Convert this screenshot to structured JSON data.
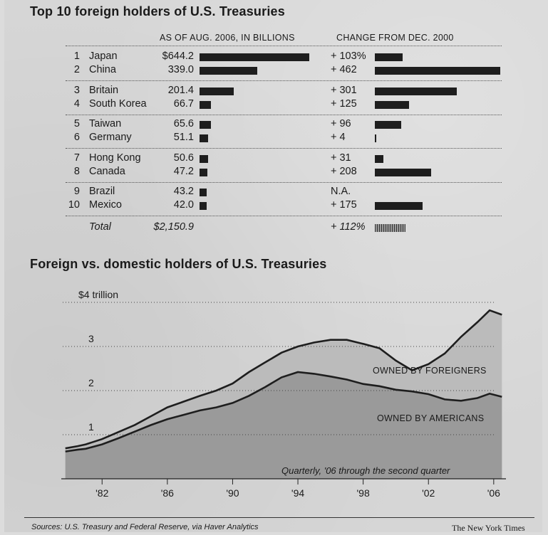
{
  "table": {
    "title": "Top 10 foreign holders of U.S. Treasuries",
    "col_amount": "AS OF AUG. 2006, IN BILLIONS",
    "col_change": "CHANGE FROM DEC. 2000",
    "rows": [
      {
        "rank": "1",
        "country": "Japan",
        "amount_label": "$644.2",
        "amount": 644.2,
        "change_label": "+ 103%",
        "change": 103
      },
      {
        "rank": "2",
        "country": "China",
        "amount_label": "339.0",
        "amount": 339.0,
        "change_label": "+ 462",
        "change": 462
      },
      {
        "rank": "3",
        "country": "Britain",
        "amount_label": "201.4",
        "amount": 201.4,
        "change_label": "+ 301",
        "change": 301
      },
      {
        "rank": "4",
        "country": "South Korea",
        "amount_label": "66.7",
        "amount": 66.7,
        "change_label": "+ 125",
        "change": 125
      },
      {
        "rank": "5",
        "country": "Taiwan",
        "amount_label": "65.6",
        "amount": 65.6,
        "change_label": "+ 96",
        "change": 96
      },
      {
        "rank": "6",
        "country": "Germany",
        "amount_label": "51.1",
        "amount": 51.1,
        "change_label": "+ 4",
        "change": 4
      },
      {
        "rank": "7",
        "country": "Hong Kong",
        "amount_label": "50.6",
        "amount": 50.6,
        "change_label": "+ 31",
        "change": 31
      },
      {
        "rank": "8",
        "country": "Canada",
        "amount_label": "47.2",
        "amount": 47.2,
        "change_label": "+ 208",
        "change": 208
      },
      {
        "rank": "9",
        "country": "Brazil",
        "amount_label": "43.2",
        "amount": 43.2,
        "change_label": "N.A.",
        "change": null
      },
      {
        "rank": "10",
        "country": "Mexico",
        "amount_label": "42.0",
        "amount": 42.0,
        "change_label": "+ 175",
        "change": 175
      }
    ],
    "total": {
      "label": "Total",
      "amount_label": "$2,150.9",
      "change_label": "+ 112%",
      "change": 112
    }
  },
  "footer": {
    "source": "Sources: U.S. Treasury and Federal Reserve, via Haver Analytics",
    "credit": "The New York Times"
  },
  "colors": {
    "ink": "#1e1e1e",
    "fill_domestic": "#9a9a9a",
    "fill_foreign": "#bbbbbb"
  },
  "chart_data": {
    "type": "area",
    "title": "Foreign vs. domestic holders of U.S. Treasuries",
    "note": "Quarterly, '06 through the second quarter",
    "ylim": [
      0,
      4
    ],
    "xlim": [
      1979.5,
      2006.75
    ],
    "y_ticks": [
      {
        "value": 4,
        "label": "$4 trillion"
      },
      {
        "value": 3,
        "label": "3"
      },
      {
        "value": 2,
        "label": "2"
      },
      {
        "value": 1,
        "label": "1"
      }
    ],
    "x_ticks": [
      {
        "value": 1982,
        "label": "'82"
      },
      {
        "value": 1986,
        "label": "'86"
      },
      {
        "value": 1990,
        "label": "'90"
      },
      {
        "value": 1994,
        "label": "'94"
      },
      {
        "value": 1998,
        "label": "'98"
      },
      {
        "value": 2002,
        "label": "'02"
      },
      {
        "value": 2006,
        "label": "'06"
      }
    ],
    "grid": true,
    "series": [
      {
        "name": "OWNED BY AMERICANS",
        "type": "area",
        "x": [
          1979.75,
          1980.5,
          1981,
          1982,
          1983,
          1984,
          1985,
          1986,
          1987,
          1988,
          1989,
          1990,
          1991,
          1992,
          1993,
          1994,
          1995,
          1996,
          1997,
          1998,
          1999,
          2000,
          2001,
          2002,
          2003,
          2004,
          2005,
          2005.75,
          2006.5
        ],
        "y": [
          0.62,
          0.66,
          0.68,
          0.78,
          0.92,
          1.07,
          1.22,
          1.35,
          1.45,
          1.55,
          1.62,
          1.72,
          1.88,
          2.08,
          2.3,
          2.42,
          2.38,
          2.32,
          2.25,
          2.15,
          2.1,
          2.02,
          1.98,
          1.92,
          1.8,
          1.77,
          1.83,
          1.93,
          1.86
        ]
      },
      {
        "name": "OWNED BY FOREIGNERS",
        "type": "area_top_total",
        "x": [
          1979.75,
          1980.5,
          1981,
          1982,
          1983,
          1984,
          1985,
          1986,
          1987,
          1988,
          1989,
          1990,
          1991,
          1992,
          1993,
          1994,
          1995,
          1996,
          1997,
          1998,
          1999,
          2000,
          2001,
          2002,
          2003,
          2004,
          2005,
          2005.75,
          2006.5
        ],
        "y": [
          0.69,
          0.74,
          0.78,
          0.9,
          1.06,
          1.22,
          1.42,
          1.62,
          1.75,
          1.88,
          2.0,
          2.16,
          2.42,
          2.64,
          2.86,
          3.0,
          3.09,
          3.15,
          3.15,
          3.06,
          2.96,
          2.68,
          2.46,
          2.6,
          2.84,
          3.22,
          3.55,
          3.82,
          3.72
        ]
      }
    ]
  }
}
